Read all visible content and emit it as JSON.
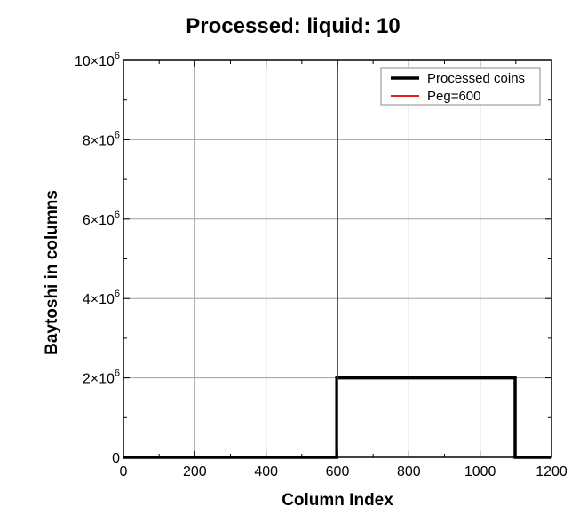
{
  "chart_data": {
    "type": "line",
    "title": "Processed: liquid: 10",
    "xlabel": "Column Index",
    "ylabel": "Baytoshi in columns",
    "xlim": [
      0,
      1200
    ],
    "ylim": [
      0,
      10000000
    ],
    "x_ticks": [
      {
        "value": 0,
        "label": "0"
      },
      {
        "value": 200,
        "label": "200"
      },
      {
        "value": 400,
        "label": "400"
      },
      {
        "value": 600,
        "label": "600"
      },
      {
        "value": 800,
        "label": "800"
      },
      {
        "value": 1000,
        "label": "1000"
      },
      {
        "value": 1200,
        "label": "1200"
      }
    ],
    "y_ticks": [
      {
        "value": 0,
        "base": "0",
        "exp": ""
      },
      {
        "value": 2000000,
        "base": "2×10",
        "exp": "6"
      },
      {
        "value": 4000000,
        "base": "4×10",
        "exp": "6"
      },
      {
        "value": 6000000,
        "base": "6×10",
        "exp": "6"
      },
      {
        "value": 8000000,
        "base": "8×10",
        "exp": "6"
      },
      {
        "value": 10000000,
        "base": "10×10",
        "exp": "6"
      }
    ],
    "grid": true,
    "legend_position": "top-right",
    "series": [
      {
        "name": "Processed coins",
        "color": "#000000",
        "points": [
          [
            0,
            0
          ],
          [
            598,
            0
          ],
          [
            598,
            2000000
          ],
          [
            1098,
            2000000
          ],
          [
            1098,
            0
          ],
          [
            1200,
            0
          ]
        ]
      },
      {
        "name": "Peg=600",
        "color": "#e00000",
        "points": [
          [
            600,
            0
          ],
          [
            600,
            10000000
          ]
        ]
      }
    ]
  }
}
